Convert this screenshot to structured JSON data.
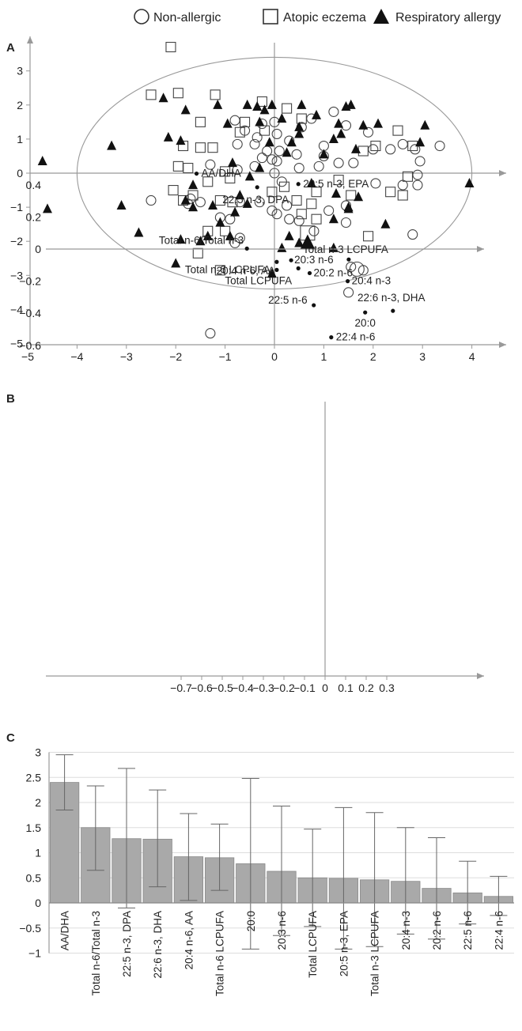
{
  "legend": {
    "items": [
      {
        "label": "Non-allergic",
        "marker": "circle-open"
      },
      {
        "label": "Atopic eczema",
        "marker": "square-open"
      },
      {
        "label": "Respiratory allergy",
        "marker": "triangle-filled"
      }
    ]
  },
  "panels": {
    "a": "A",
    "b": "B",
    "c": "C"
  },
  "chart_data": [
    {
      "id": "A",
      "type": "scatter",
      "title": "",
      "xlabel": "",
      "ylabel": "",
      "xlim": [
        -5,
        5
      ],
      "ylim": [
        -5,
        3.8
      ],
      "xticks": [
        -5,
        -4,
        -3,
        -2,
        -1,
        0,
        1,
        2,
        3,
        4
      ],
      "yticks": [
        -5,
        -4,
        -3,
        -2,
        -1,
        0,
        1,
        2,
        3
      ],
      "ellipse": {
        "cx": 0,
        "cy": 0,
        "rx": 4,
        "ry": 3.4
      },
      "series": [
        {
          "name": "Non-allergic",
          "marker": "circle-open",
          "points": [
            [
              -1.3,
              -4.7
            ],
            [
              1.5,
              -3.5
            ],
            [
              1.8,
              -2.85
            ],
            [
              1.55,
              -2.75
            ],
            [
              2.8,
              -1.8
            ],
            [
              1.45,
              -1.45
            ],
            [
              0.8,
              -1.7
            ],
            [
              1.1,
              -1.1
            ],
            [
              1.45,
              -0.95
            ],
            [
              0.5,
              -1.4
            ],
            [
              0.3,
              -1.35
            ],
            [
              0.05,
              -1.2
            ],
            [
              0.25,
              -0.95
            ],
            [
              -0.05,
              -1.1
            ],
            [
              -0.3,
              -0.85
            ],
            [
              0.15,
              -0.25
            ],
            [
              -0.8,
              -2.05
            ],
            [
              -0.7,
              -1.9
            ],
            [
              -0.9,
              -1.35
            ],
            [
              -1.1,
              -1.3
            ],
            [
              -0.7,
              -0.85
            ],
            [
              -1.5,
              -0.85
            ],
            [
              -1.75,
              -0.9
            ],
            [
              -1.7,
              -0.75
            ],
            [
              -2.5,
              -0.8
            ],
            [
              -1.3,
              0.25
            ],
            [
              -0.75,
              0.1
            ],
            [
              -0.4,
              0.2
            ],
            [
              -0.25,
              0.45
            ],
            [
              0.05,
              0.35
            ],
            [
              0.1,
              0.65
            ],
            [
              0.45,
              0.55
            ],
            [
              0.5,
              0.15
            ],
            [
              0.9,
              0.2
            ],
            [
              1.0,
              0.5
            ],
            [
              1.3,
              0.3
            ],
            [
              1.6,
              0.3
            ],
            [
              2.0,
              0.7
            ],
            [
              2.35,
              0.7
            ],
            [
              2.6,
              0.85
            ],
            [
              2.85,
              0.7
            ],
            [
              2.95,
              0.35
            ],
            [
              3.35,
              0.8
            ],
            [
              2.9,
              -0.05
            ],
            [
              2.9,
              -0.35
            ],
            [
              2.6,
              -0.35
            ],
            [
              2.05,
              -0.3
            ],
            [
              1.9,
              1.2
            ],
            [
              1.45,
              1.4
            ],
            [
              1.2,
              1.8
            ],
            [
              0.75,
              1.6
            ],
            [
              0.55,
              1.35
            ],
            [
              0.0,
              1.5
            ],
            [
              -0.25,
              1.45
            ],
            [
              -0.35,
              1.05
            ],
            [
              -0.6,
              1.25
            ],
            [
              -0.8,
              1.55
            ],
            [
              -0.75,
              0.85
            ],
            [
              -0.4,
              0.85
            ],
            [
              0.05,
              1.15
            ],
            [
              -0.15,
              0.65
            ],
            [
              -0.05,
              0.4
            ],
            [
              0.0,
              0.0
            ],
            [
              1.0,
              0.8
            ],
            [
              0.3,
              0.95
            ]
          ]
        },
        {
          "name": "Atopic eczema",
          "marker": "square-open",
          "points": [
            [
              -2.1,
              3.7
            ],
            [
              -2.5,
              2.3
            ],
            [
              -1.95,
              2.35
            ],
            [
              -1.2,
              2.3
            ],
            [
              -0.25,
              2.1
            ],
            [
              0.25,
              1.9
            ],
            [
              0.55,
              1.6
            ],
            [
              -1.5,
              1.5
            ],
            [
              -0.6,
              1.5
            ],
            [
              -0.7,
              1.2
            ],
            [
              -0.2,
              1.25
            ],
            [
              -1.85,
              0.8
            ],
            [
              -1.5,
              0.75
            ],
            [
              -1.25,
              0.75
            ],
            [
              -1.95,
              0.2
            ],
            [
              -1.75,
              0.15
            ],
            [
              -1.0,
              0.05
            ],
            [
              -1.35,
              -0.25
            ],
            [
              -2.05,
              -0.5
            ],
            [
              -1.65,
              -0.65
            ],
            [
              -0.9,
              -0.15
            ],
            [
              -1.1,
              -0.8
            ],
            [
              -1.85,
              -0.8
            ],
            [
              -0.85,
              -0.85
            ],
            [
              -1.35,
              -1.7
            ],
            [
              -1.0,
              -1.7
            ],
            [
              -1.55,
              -2.35
            ],
            [
              -1.1,
              -2.85
            ],
            [
              -0.05,
              -0.55
            ],
            [
              0.2,
              -0.4
            ],
            [
              0.45,
              -0.8
            ],
            [
              0.75,
              -0.9
            ],
            [
              0.85,
              -1.35
            ],
            [
              0.55,
              -1.2
            ],
            [
              0.85,
              -0.55
            ],
            [
              1.3,
              -0.2
            ],
            [
              1.55,
              -0.65
            ],
            [
              1.9,
              -1.85
            ],
            [
              1.8,
              0.65
            ],
            [
              2.35,
              -0.55
            ],
            [
              2.6,
              -0.65
            ],
            [
              2.7,
              -0.1
            ],
            [
              2.8,
              0.8
            ],
            [
              2.5,
              1.25
            ],
            [
              2.05,
              0.8
            ]
          ]
        },
        {
          "name": "Respiratory allergy",
          "marker": "triangle-filled",
          "points": [
            [
              -4.7,
              0.35
            ],
            [
              -4.6,
              -1.05
            ],
            [
              -3.3,
              0.8
            ],
            [
              -3.1,
              -0.95
            ],
            [
              -2.75,
              -1.75
            ],
            [
              -2.25,
              2.2
            ],
            [
              -2.15,
              1.05
            ],
            [
              -1.9,
              0.95
            ],
            [
              -1.8,
              1.85
            ],
            [
              -1.65,
              -0.35
            ],
            [
              -1.65,
              -1.0
            ],
            [
              -1.9,
              -1.95
            ],
            [
              -2.0,
              -2.65
            ],
            [
              -1.8,
              -0.8
            ],
            [
              -1.25,
              -0.95
            ],
            [
              -1.1,
              -1.45
            ],
            [
              -0.8,
              -1.15
            ],
            [
              -0.9,
              -1.85
            ],
            [
              -0.7,
              -0.65
            ],
            [
              -0.55,
              -0.9
            ],
            [
              -0.85,
              0.3
            ],
            [
              -0.5,
              -0.1
            ],
            [
              -0.3,
              0.15
            ],
            [
              -0.1,
              0.9
            ],
            [
              -0.2,
              1.85
            ],
            [
              -0.05,
              2.0
            ],
            [
              0.15,
              1.6
            ],
            [
              0.5,
              1.35
            ],
            [
              0.85,
              1.7
            ],
            [
              1.3,
              1.45
            ],
            [
              1.8,
              1.4
            ],
            [
              1.65,
              0.7
            ],
            [
              1.2,
              1.0
            ],
            [
              1.0,
              0.55
            ],
            [
              0.75,
              -0.3
            ],
            [
              1.25,
              -0.6
            ],
            [
              1.5,
              -1.05
            ],
            [
              1.2,
              -1.35
            ],
            [
              1.2,
              -2.2
            ],
            [
              0.3,
              -1.85
            ],
            [
              0.15,
              -2.2
            ],
            [
              0.5,
              -2.05
            ],
            [
              -0.05,
              -2.95
            ],
            [
              -1.35,
              -1.85
            ],
            [
              -1.5,
              -2.0
            ],
            [
              0.25,
              0.6
            ],
            [
              0.35,
              0.9
            ],
            [
              0.5,
              1.15
            ],
            [
              -0.35,
              1.95
            ],
            [
              -0.55,
              2.0
            ],
            [
              -1.15,
              2.0
            ],
            [
              -0.95,
              1.45
            ],
            [
              -0.3,
              1.5
            ],
            [
              0.55,
              2.0
            ],
            [
              1.55,
              2.0
            ],
            [
              1.45,
              1.95
            ],
            [
              2.1,
              1.45
            ],
            [
              1.35,
              1.15
            ],
            [
              1.7,
              -0.7
            ],
            [
              2.25,
              -1.5
            ],
            [
              3.05,
              1.4
            ],
            [
              2.95,
              0.9
            ],
            [
              3.95,
              -0.3
            ],
            [
              1.5,
              -1.0
            ]
          ]
        }
      ]
    },
    {
      "id": "B",
      "type": "scatter",
      "title": "",
      "xlabel": "",
      "ylabel": "",
      "xlim": [
        -0.7,
        0.4
      ],
      "ylim": [
        -0.6,
        0.5
      ],
      "xticks": [
        -0.7,
        -0.6,
        -0.5,
        -0.4,
        -0.3,
        -0.2,
        -0.1,
        0,
        0.1,
        0.2,
        0.3
      ],
      "yticks": [
        -0.6,
        -0.4,
        -0.2,
        0,
        0.2,
        0.4
      ],
      "points": [
        {
          "label": "AA/DHA",
          "x": -0.625,
          "y": 0.47
        },
        {
          "label": "22:5 n-3, DPA",
          "x": -0.33,
          "y": 0.385
        },
        {
          "label": "20:5 n-3, EPA",
          "x": -0.13,
          "y": 0.405
        },
        {
          "label": "Total n-6/Total n-3",
          "x": -0.38,
          "y": 0.003
        },
        {
          "label": "20:4 n-6, AA",
          "x": -0.235,
          "y": -0.08
        },
        {
          "label": "Total n-6 LCPUFA",
          "x": -0.235,
          "y": -0.13
        },
        {
          "label": "20:3 n-6",
          "x": -0.165,
          "y": -0.07
        },
        {
          "label": "Total LCPUFA",
          "x": -0.13,
          "y": -0.12
        },
        {
          "label": "20:2 n-6",
          "x": -0.075,
          "y": -0.15
        },
        {
          "label": "Total n-3 LCPUFA",
          "x": 0.115,
          "y": -0.065
        },
        {
          "label": "20:4 n-3",
          "x": 0.11,
          "y": -0.2
        },
        {
          "label": "22:5 n-6",
          "x": -0.055,
          "y": -0.35
        },
        {
          "label": "22:6 n-3, DHA",
          "x": 0.33,
          "y": -0.385
        },
        {
          "label": "20:0",
          "x": 0.195,
          "y": -0.395
        },
        {
          "label": "22:4 n-6",
          "x": 0.03,
          "y": -0.55
        }
      ],
      "group_markers": [
        {
          "group": "Atopic eczema",
          "marker": "square-open",
          "x": -0.085,
          "y": 0.1
        },
        {
          "group": "Respiratory allergy",
          "marker": "triangle-filled",
          "x": -0.085,
          "y": 0.04
        },
        {
          "group": "Non-allergic",
          "marker": "circle-open",
          "x": 0.155,
          "y": -0.125
        }
      ]
    },
    {
      "id": "C",
      "type": "bar",
      "title": "",
      "xlabel": "",
      "ylabel": "",
      "ylim": [
        -1,
        3
      ],
      "yticks": [
        -1,
        -0.5,
        0,
        0.5,
        1,
        1.5,
        2,
        2.5,
        3
      ],
      "categories": [
        "AA/DHA",
        "Total n-6/Total n-3",
        "22:5 n-3, DPA",
        "22:6 n-3, DHA",
        "20:4 n-6, AA",
        "Total n-6 LCPUFA",
        "20:0",
        "20:3 n-6",
        "Total LCPUFA",
        "20:5 n-3, EPA",
        "Total n-3 LCPUFA",
        "20:4 n-3",
        "20:2 n-6",
        "22:5 n-6",
        "22:4 n-6"
      ],
      "values": [
        2.4,
        1.5,
        1.28,
        1.27,
        0.92,
        0.9,
        0.78,
        0.63,
        0.5,
        0.49,
        0.46,
        0.43,
        0.29,
        0.2,
        0.13
      ],
      "error_low": [
        1.85,
        0.65,
        -0.1,
        0.32,
        0.05,
        0.25,
        -0.92,
        -0.65,
        -0.47,
        -0.92,
        -0.87,
        -0.62,
        -0.72,
        -0.42,
        -0.25
      ],
      "error_high": [
        2.95,
        2.33,
        2.68,
        2.25,
        1.78,
        1.57,
        2.48,
        1.93,
        1.47,
        1.9,
        1.8,
        1.5,
        1.3,
        0.83,
        0.53
      ]
    }
  ]
}
